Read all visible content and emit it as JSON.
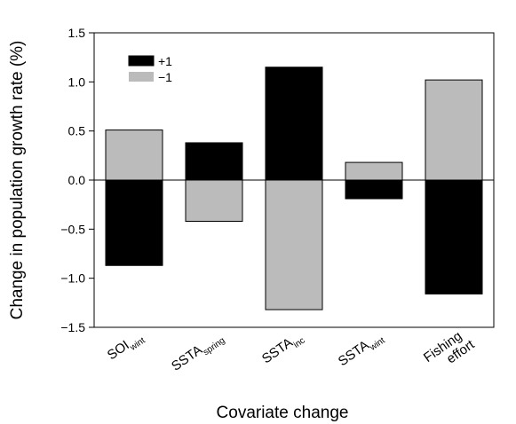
{
  "chart_data": {
    "type": "bar",
    "xlabel": "Covariate change",
    "ylabel": "Change in population growth rate (%)",
    "ylim": [
      -1.5,
      1.5
    ],
    "yticks": [
      "1.5",
      "1.0",
      "0.5",
      "0.0",
      "−0.5",
      "−1.0",
      "−1.5"
    ],
    "ytick_values": [
      1.5,
      1.0,
      0.5,
      0.0,
      -0.5,
      -1.0,
      -1.5
    ],
    "categories": [
      {
        "main": "SOI",
        "sub": "wint"
      },
      {
        "main": "SSTA",
        "sub": "spring"
      },
      {
        "main": "SSTA",
        "sub": "inc"
      },
      {
        "main": "SSTA",
        "sub": "wint"
      },
      {
        "main": "Fishing",
        "line2": "effort"
      }
    ],
    "series": [
      {
        "name": "+1",
        "color": "#000000",
        "values": [
          -0.87,
          0.38,
          1.15,
          -0.19,
          -1.16
        ]
      },
      {
        "name": "−1",
        "color": "#bbbbbb",
        "values": [
          0.51,
          -0.42,
          -1.32,
          0.18,
          1.02
        ]
      }
    ],
    "legend": "top-left",
    "grid": false
  }
}
